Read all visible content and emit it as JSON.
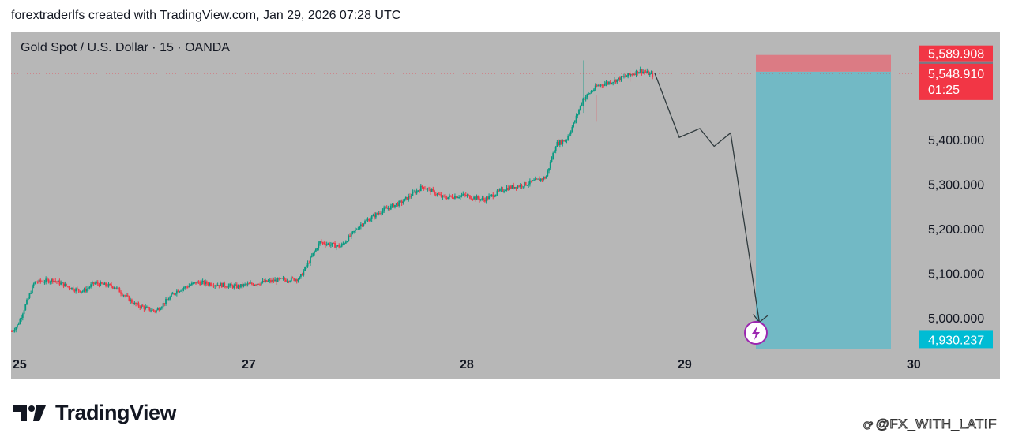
{
  "header": {
    "caption": "forextraderlfs created with TradingView.com, Jan 29, 2026 07:28 UTC"
  },
  "symbol": {
    "title": "Gold Spot / U.S. Dollar · 15 · OANDA"
  },
  "brand": {
    "name": "TradingView"
  },
  "watermark": {
    "handle": "@FX_WITH_LATIF"
  },
  "colors": {
    "up": "#089981",
    "down": "#f23645",
    "target_zone": "#72b9c5",
    "stop_zone": "#db7b84",
    "price_box": "#f23645",
    "target_box": "#00bcd4",
    "entry_box": "#787b86"
  },
  "chart_data": {
    "type": "candlestick",
    "symbol": "Gold Spot / U.S. Dollar · 15 · OANDA",
    "x_ticks": [
      "25",
      "27",
      "28",
      "29",
      "30"
    ],
    "y_ticks": [
      "5,000.000",
      "5,100.000",
      "5,200.000",
      "5,300.000",
      "5,400.000"
    ],
    "ylim": [
      4930,
      5620
    ],
    "price_waypoints": [
      [
        0,
        4970
      ],
      [
        0.3,
        4985
      ],
      [
        1.1,
        5080
      ],
      [
        2.0,
        5085
      ],
      [
        3.0,
        5065
      ],
      [
        3.5,
        5060
      ],
      [
        4.0,
        5078
      ],
      [
        5.0,
        5070
      ],
      [
        6.0,
        5030
      ],
      [
        7.0,
        5015
      ],
      [
        8.0,
        5060
      ],
      [
        9.0,
        5080
      ],
      [
        10.0,
        5075
      ],
      [
        11.0,
        5070
      ],
      [
        11.5,
        5075
      ],
      [
        13.0,
        5085
      ],
      [
        14.0,
        5088
      ],
      [
        15.0,
        5170
      ],
      [
        16.0,
        5160
      ],
      [
        17.0,
        5210
      ],
      [
        18.0,
        5240
      ],
      [
        19.0,
        5260
      ],
      [
        20.0,
        5295
      ],
      [
        21.0,
        5270
      ],
      [
        22.0,
        5275
      ],
      [
        23.0,
        5265
      ],
      [
        24.0,
        5290
      ],
      [
        25.0,
        5300
      ],
      [
        26.0,
        5315
      ],
      [
        26.5,
        5390
      ],
      [
        27.0,
        5400
      ],
      [
        27.4,
        5440
      ],
      [
        27.8,
        5490
      ],
      [
        28.5,
        5520
      ],
      [
        29.5,
        5535
      ],
      [
        30.6,
        5555
      ],
      [
        31.2,
        5545
      ]
    ],
    "current_price": "5,548.910",
    "countdown": "01:25",
    "stop_price": "5,589.908",
    "entry_price": "5,552.513",
    "target_price": "4,930.237",
    "projection_path": [
      [
        31.3,
        5550
      ],
      [
        32.5,
        5405
      ],
      [
        33.5,
        5425
      ],
      [
        34.2,
        5385
      ],
      [
        35.0,
        5415
      ],
      [
        36.4,
        4990
      ],
      [
        36.8,
        5005
      ],
      [
        36.4,
        4990
      ],
      [
        36.1,
        5008
      ]
    ]
  }
}
